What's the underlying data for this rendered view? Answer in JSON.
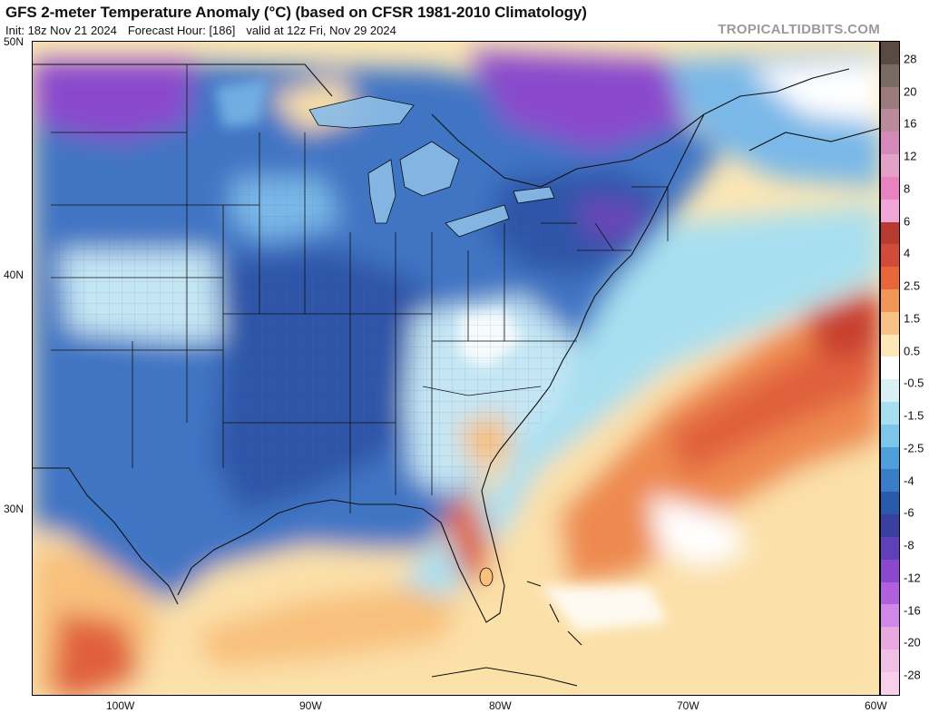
{
  "header": {
    "title": "GFS 2-meter Temperature Anomaly (°C) (based on CFSR 1981-2010 Climatology)",
    "init": "Init: 18z Nov 21 2024",
    "forecast_hour": "Forecast Hour: [186]",
    "valid": "valid at 12z Fri, Nov 29 2024",
    "brand": "TROPICALTIDBITS.COM"
  },
  "axes": {
    "lat_labels": [
      "50N",
      "40N",
      "30N"
    ],
    "lon_labels": [
      "100W",
      "90W",
      "80W",
      "70W",
      "60W"
    ]
  },
  "legend": {
    "labels": [
      "28",
      "20",
      "16",
      "12",
      "8",
      "6",
      "4",
      "2.5",
      "1.5",
      "0.5",
      "-0.5",
      "-1.5",
      "-2.5",
      "-4",
      "-6",
      "-8",
      "-12",
      "-16",
      "-20",
      "-28"
    ],
    "colors": [
      "#5a4a42",
      "#7a6a62",
      "#9a7a7a",
      "#b88a9a",
      "#d48ab8",
      "#e2a2c8",
      "#e882c0",
      "#f0a6d6",
      "#b83a30",
      "#d24a3a",
      "#e8663a",
      "#f29558",
      "#f8c287",
      "#fde6b8",
      "#ffffff",
      "#d8f0f4",
      "#a8dff0",
      "#7cc6ec",
      "#4f9fdc",
      "#3a7cc8",
      "#2a5aaa",
      "#3a3fa0",
      "#6040b8",
      "#8a48cc",
      "#b060dc",
      "#d088e8",
      "#e8a8e0",
      "#f0c0e4",
      "#f6d0ea"
    ]
  },
  "map": {
    "color_scale": {
      "deep_purple": "#8a48cc",
      "dark_blue": "#2f55a8",
      "mid_blue": "#3f74c4",
      "light_blue": "#79b8e8",
      "pale_blue": "#c4e6f4",
      "neutral": "#ffffff",
      "pale_yellow": "#fbe6b5",
      "light_orange": "#f8c07c",
      "orange": "#ee8a50",
      "red_orange": "#e0603c",
      "red": "#c8402e"
    }
  }
}
